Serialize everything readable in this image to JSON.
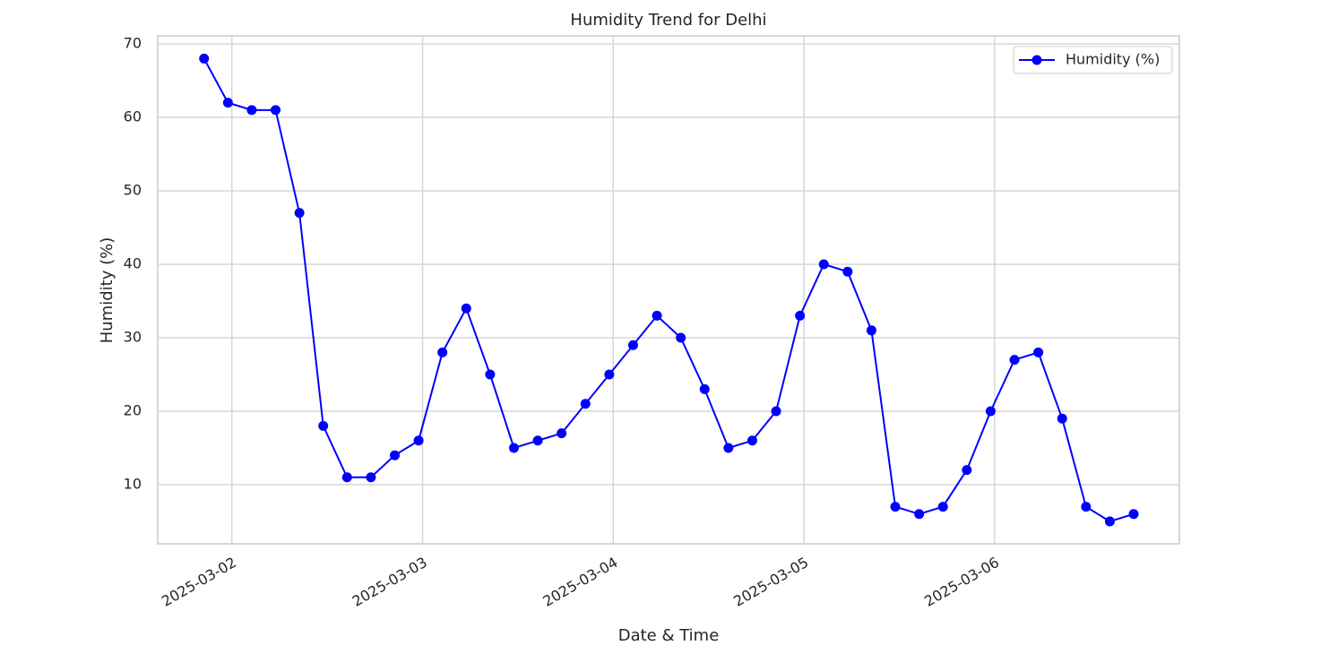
{
  "chart_data": {
    "type": "line",
    "title": "Humidity Trend for Delhi",
    "x_label": "Date & Time",
    "y_label": "Humidity (%)",
    "x": [
      "2025-03-01 20:30",
      "2025-03-01 23:30",
      "2025-03-02 02:30",
      "2025-03-02 05:30",
      "2025-03-02 08:30",
      "2025-03-02 11:30",
      "2025-03-02 14:30",
      "2025-03-02 17:30",
      "2025-03-02 20:30",
      "2025-03-02 23:30",
      "2025-03-03 02:30",
      "2025-03-03 05:30",
      "2025-03-03 08:30",
      "2025-03-03 11:30",
      "2025-03-03 14:30",
      "2025-03-03 17:30",
      "2025-03-03 20:30",
      "2025-03-03 23:30",
      "2025-03-04 02:30",
      "2025-03-04 05:30",
      "2025-03-04 08:30",
      "2025-03-04 11:30",
      "2025-03-04 14:30",
      "2025-03-04 17:30",
      "2025-03-04 20:30",
      "2025-03-04 23:30",
      "2025-03-05 02:30",
      "2025-03-05 05:30",
      "2025-03-05 08:30",
      "2025-03-05 11:30",
      "2025-03-05 14:30",
      "2025-03-05 17:30",
      "2025-03-05 20:30",
      "2025-03-05 23:30",
      "2025-03-06 02:30",
      "2025-03-06 05:30",
      "2025-03-06 08:30",
      "2025-03-06 11:30",
      "2025-03-06 14:30",
      "2025-03-06 17:30"
    ],
    "series": [
      {
        "name": "Humidity (%)",
        "color": "#0000ff",
        "values": [
          68,
          62,
          61,
          61,
          47,
          18,
          11,
          11,
          14,
          16,
          28,
          34,
          25,
          15,
          16,
          17,
          21,
          25,
          29,
          33,
          30,
          23,
          15,
          16,
          20,
          33,
          40,
          39,
          31,
          7,
          6,
          7,
          12,
          20,
          27,
          28,
          19,
          7,
          5,
          6
        ]
      }
    ],
    "xlim": [
      "2025-03-01 14:40",
      "2025-03-06 23:15"
    ],
    "xticks": [
      "2025-03-02",
      "2025-03-03",
      "2025-03-04",
      "2025-03-05",
      "2025-03-06"
    ],
    "ylim": [
      1.95,
      71.1
    ],
    "yticks": [
      10,
      20,
      30,
      40,
      50,
      60,
      70
    ],
    "grid": true,
    "legend": "upper right"
  }
}
